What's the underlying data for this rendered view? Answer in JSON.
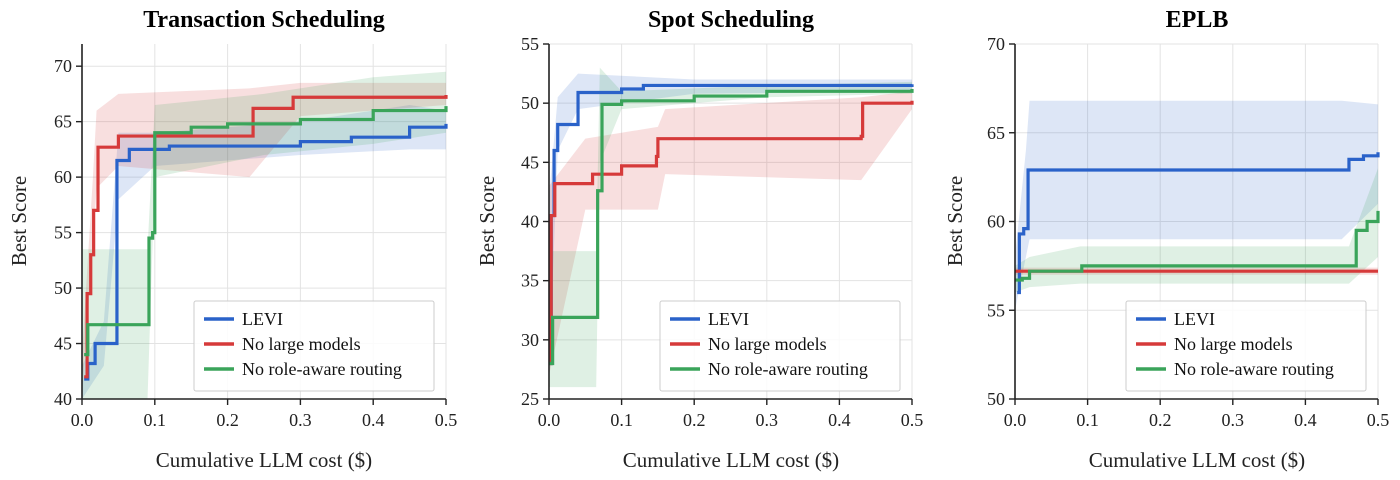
{
  "chart_data": [
    {
      "type": "line",
      "title": "Transaction Scheduling",
      "xlabel": "Cumulative LLM cost ($)",
      "ylabel": "Best Score",
      "xlim": [
        0,
        0.5
      ],
      "ylim": [
        40,
        72
      ],
      "xticks": [
        "0.0",
        "0.1",
        "0.2",
        "0.3",
        "0.4",
        "0.5"
      ],
      "yticks": [
        "40",
        "45",
        "50",
        "55",
        "60",
        "65",
        "70"
      ],
      "grid": true,
      "legend_position": "bottom-right",
      "series": [
        {
          "name": "LEVI",
          "color": "#2a62c9",
          "points": [
            [
              0.003,
              41.8
            ],
            [
              0.008,
              43.2
            ],
            [
              0.018,
              45.0
            ],
            [
              0.045,
              45.0
            ],
            [
              0.048,
              61.5
            ],
            [
              0.065,
              62.5
            ],
            [
              0.12,
              62.8
            ],
            [
              0.3,
              63.2
            ],
            [
              0.37,
              63.6
            ],
            [
              0.45,
              64.5
            ],
            [
              0.5,
              64.8
            ]
          ],
          "band": [
            [
              0.0,
              40.0,
              43.0
            ],
            [
              0.03,
              43.0,
              47.0
            ],
            [
              0.05,
              58.0,
              64.0
            ],
            [
              0.1,
              61.0,
              64.0
            ],
            [
              0.3,
              62.0,
              65.0
            ],
            [
              0.45,
              62.5,
              66.5
            ],
            [
              0.5,
              62.5,
              66.0
            ]
          ]
        },
        {
          "name": "No large models",
          "color": "#d63a3a",
          "points": [
            [
              0.003,
              42.0
            ],
            [
              0.007,
              49.5
            ],
            [
              0.012,
              53.0
            ],
            [
              0.016,
              57.0
            ],
            [
              0.022,
              62.7
            ],
            [
              0.05,
              63.7
            ],
            [
              0.23,
              63.7
            ],
            [
              0.235,
              66.2
            ],
            [
              0.29,
              67.2
            ],
            [
              0.5,
              67.4
            ]
          ],
          "band": [
            [
              0.0,
              40.5,
              44.0
            ],
            [
              0.015,
              54.0,
              60.0
            ],
            [
              0.02,
              59.0,
              66.0
            ],
            [
              0.05,
              61.0,
              67.5
            ],
            [
              0.23,
              60.0,
              68.0
            ],
            [
              0.3,
              65.5,
              68.5
            ],
            [
              0.5,
              66.5,
              68.5
            ]
          ]
        },
        {
          "name": "No role-aware routing",
          "color": "#3aa45a",
          "points": [
            [
              0.003,
              44.0
            ],
            [
              0.008,
              46.7
            ],
            [
              0.09,
              46.7
            ],
            [
              0.092,
              54.5
            ],
            [
              0.097,
              55.0
            ],
            [
              0.1,
              64.0
            ],
            [
              0.15,
              64.5
            ],
            [
              0.2,
              64.8
            ],
            [
              0.3,
              65.2
            ],
            [
              0.4,
              66.0
            ],
            [
              0.5,
              66.4
            ]
          ],
          "band": [
            [
              0.0,
              40.0,
              53.5
            ],
            [
              0.09,
              40.0,
              53.5
            ],
            [
              0.1,
              60.0,
              66.5
            ],
            [
              0.25,
              62.0,
              67.5
            ],
            [
              0.4,
              63.0,
              69.0
            ],
            [
              0.5,
              64.0,
              69.5
            ]
          ]
        }
      ]
    },
    {
      "type": "line",
      "title": "Spot Scheduling",
      "xlabel": "Cumulative LLM cost ($)",
      "ylabel": "Best Score",
      "xlim": [
        0,
        0.5
      ],
      "ylim": [
        25,
        55
      ],
      "xticks": [
        "0.0",
        "0.1",
        "0.2",
        "0.3",
        "0.4",
        "0.5"
      ],
      "yticks": [
        "25",
        "30",
        "35",
        "40",
        "45",
        "50",
        "55"
      ],
      "grid": true,
      "legend_position": "bottom-right",
      "series": [
        {
          "name": "LEVI",
          "color": "#2a62c9",
          "points": [
            [
              0.0,
              28.0
            ],
            [
              0.003,
              40.5
            ],
            [
              0.007,
              46.0
            ],
            [
              0.012,
              48.2
            ],
            [
              0.04,
              50.9
            ],
            [
              0.1,
              51.2
            ],
            [
              0.13,
              51.5
            ],
            [
              0.3,
              51.5
            ],
            [
              0.5,
              51.6
            ]
          ],
          "band": [
            [
              0.0,
              27.0,
              42.0
            ],
            [
              0.012,
              46.0,
              50.5
            ],
            [
              0.04,
              49.5,
              52.5
            ],
            [
              0.2,
              50.8,
              52.0
            ],
            [
              0.5,
              51.0,
              52.0
            ]
          ]
        },
        {
          "name": "No large models",
          "color": "#d63a3a",
          "points": [
            [
              0.0,
              28.0
            ],
            [
              0.003,
              40.5
            ],
            [
              0.008,
              43.2
            ],
            [
              0.06,
              44.0
            ],
            [
              0.1,
              44.7
            ],
            [
              0.148,
              45.5
            ],
            [
              0.15,
              47.0
            ],
            [
              0.43,
              47.2
            ],
            [
              0.432,
              50.0
            ],
            [
              0.5,
              50.2
            ]
          ],
          "band": [
            [
              0.0,
              27.0,
              43.0
            ],
            [
              0.05,
              41.0,
              47.0
            ],
            [
              0.15,
              41.0,
              48.0
            ],
            [
              0.16,
              44.0,
              49.5
            ],
            [
              0.43,
              43.5,
              50.5
            ],
            [
              0.5,
              49.5,
              51.0
            ]
          ]
        },
        {
          "name": "No role-aware routing",
          "color": "#3aa45a",
          "points": [
            [
              0.0,
              28.0
            ],
            [
              0.005,
              31.9
            ],
            [
              0.065,
              31.9
            ],
            [
              0.067,
              42.6
            ],
            [
              0.073,
              49.9
            ],
            [
              0.1,
              50.2
            ],
            [
              0.2,
              50.6
            ],
            [
              0.3,
              51.0
            ],
            [
              0.5,
              51.2
            ]
          ],
          "band": [
            [
              0.0,
              26.0,
              37.5
            ],
            [
              0.065,
              26.0,
              37.5
            ],
            [
              0.07,
              45.0,
              53.0
            ],
            [
              0.1,
              49.5,
              51.0
            ],
            [
              0.3,
              50.5,
              51.5
            ],
            [
              0.5,
              50.8,
              51.8
            ]
          ]
        }
      ]
    },
    {
      "type": "line",
      "title": "EPLB",
      "xlabel": "Cumulative LLM cost ($)",
      "ylabel": "Best Score",
      "xlim": [
        0,
        0.5
      ],
      "ylim": [
        50,
        70
      ],
      "xticks": [
        "0.0",
        "0.1",
        "0.2",
        "0.3",
        "0.4",
        "0.5"
      ],
      "yticks": [
        "50",
        "55",
        "60",
        "65",
        "70"
      ],
      "grid": true,
      "legend_position": "bottom-right",
      "series": [
        {
          "name": "LEVI",
          "color": "#2a62c9",
          "points": [
            [
              0.003,
              56.0
            ],
            [
              0.006,
              59.3
            ],
            [
              0.012,
              59.6
            ],
            [
              0.018,
              62.9
            ],
            [
              0.45,
              62.9
            ],
            [
              0.46,
              63.5
            ],
            [
              0.48,
              63.7
            ],
            [
              0.5,
              63.9
            ]
          ],
          "band": [
            [
              0.0,
              55.0,
              58.0
            ],
            [
              0.015,
              58.0,
              64.0
            ],
            [
              0.02,
              59.0,
              66.8
            ],
            [
              0.45,
              59.0,
              66.8
            ],
            [
              0.5,
              61.0,
              66.6
            ]
          ]
        },
        {
          "name": "No large models",
          "color": "#d63a3a",
          "points": [
            [
              0.0,
              57.2
            ],
            [
              0.5,
              57.2
            ]
          ],
          "band": [
            [
              0.0,
              57.0,
              57.4
            ],
            [
              0.5,
              57.0,
              57.4
            ]
          ]
        },
        {
          "name": "No role-aware routing",
          "color": "#3aa45a",
          "points": [
            [
              0.0,
              56.7
            ],
            [
              0.01,
              56.8
            ],
            [
              0.02,
              57.2
            ],
            [
              0.09,
              57.2
            ],
            [
              0.092,
              57.5
            ],
            [
              0.46,
              57.5
            ],
            [
              0.47,
              59.5
            ],
            [
              0.485,
              60.0
            ],
            [
              0.5,
              60.6
            ]
          ],
          "band": [
            [
              0.0,
              56.0,
              57.5
            ],
            [
              0.02,
              56.3,
              58.0
            ],
            [
              0.09,
              56.5,
              58.6
            ],
            [
              0.46,
              56.5,
              58.6
            ],
            [
              0.5,
              58.0,
              63.0
            ]
          ]
        }
      ]
    }
  ]
}
